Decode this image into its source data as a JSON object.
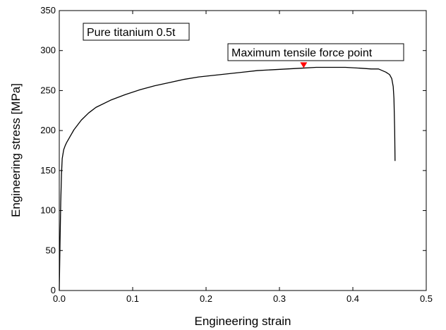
{
  "chart_data": {
    "type": "line",
    "title": "",
    "xlabel": "Engineering strain",
    "ylabel": "Engineering stress [MPa]",
    "xlim": [
      0.0,
      0.5
    ],
    "ylim": [
      0,
      350
    ],
    "xticks": [
      "0.0",
      "0.1",
      "0.2",
      "0.3",
      "0.4",
      "0.5"
    ],
    "yticks": [
      "0",
      "50",
      "100",
      "150",
      "200",
      "250",
      "300",
      "350"
    ],
    "grid": false,
    "legend": "none",
    "series": [
      {
        "color": "#000000",
        "x": [
          0.0,
          0.001,
          0.002,
          0.003,
          0.004,
          0.006,
          0.008,
          0.01,
          0.015,
          0.02,
          0.03,
          0.04,
          0.05,
          0.07,
          0.09,
          0.11,
          0.13,
          0.15,
          0.17,
          0.19,
          0.21,
          0.23,
          0.25,
          0.27,
          0.29,
          0.31,
          0.33,
          0.35,
          0.37,
          0.39,
          0.41,
          0.425,
          0.435,
          0.44,
          0.445,
          0.45,
          0.453,
          0.455,
          0.456,
          0.457,
          0.4575
        ],
        "y": [
          0,
          60,
          110,
          145,
          165,
          176,
          181,
          185,
          193,
          201,
          213,
          222,
          229,
          238,
          245,
          251,
          256,
          260,
          264,
          267,
          269,
          271,
          273,
          275,
          276,
          277,
          278,
          279,
          279,
          279,
          278,
          277,
          277,
          275,
          273,
          270,
          265,
          255,
          240,
          200,
          162
        ]
      }
    ],
    "annotations": [
      {
        "text": "Pure titanium 0.5t",
        "boxed": true
      },
      {
        "text": "Maximum tensile force point",
        "boxed": true,
        "marker": "red-triangle",
        "x": 0.333,
        "y": 280,
        "marker_color": "#ff0000"
      }
    ]
  }
}
